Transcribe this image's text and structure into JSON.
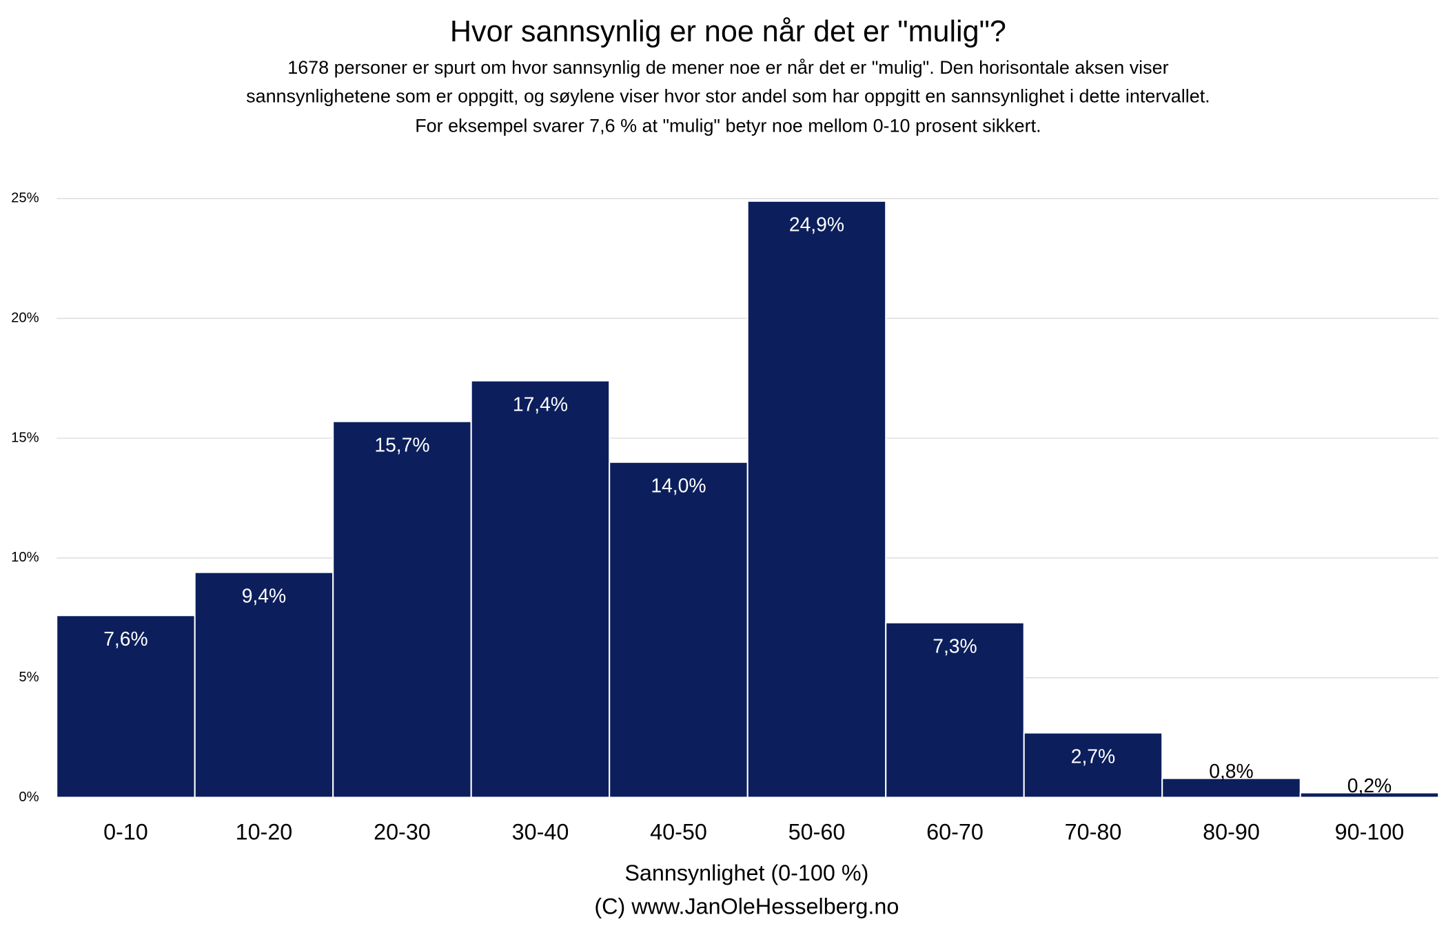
{
  "chart_data": {
    "type": "bar",
    "title": "Hvor sannsynlig er noe når det er \"mulig\"?",
    "subtitle": [
      "1678 personer er spurt om hvor sannsynlig de mener noe er når det er \"mulig\". Den horisontale aksen viser",
      "sannsynlighetene som er oppgitt, og søylene viser hvor stor andel som har oppgitt en sannsynlighet i dette intervallet.",
      "For eksempel svarer 7,6 % at \"mulig\" betyr noe mellom 0-10 prosent sikkert."
    ],
    "x_label": "Sannsynlighet (0-100 %)",
    "credit": "(C) www.JanOleHesselberg.no",
    "categories": [
      "0-10",
      "10-20",
      "20-30",
      "30-40",
      "40-50",
      "50-60",
      "60-70",
      "70-80",
      "80-90",
      "90-100"
    ],
    "values": [
      7.6,
      9.4,
      15.7,
      17.4,
      14.0,
      24.9,
      7.3,
      2.7,
      0.8,
      0.2
    ],
    "value_labels": [
      "7,6%",
      "9,4%",
      "15,7%",
      "17,4%",
      "14,0%",
      "24,9%",
      "7,3%",
      "2,7%",
      "0,8%",
      "0,2%"
    ],
    "color": "#0c1f5c",
    "ylim": [
      0,
      25
    ],
    "yticks": [
      {
        "value": 0,
        "label": "0%"
      },
      {
        "value": 5,
        "label": "5%"
      },
      {
        "value": 10,
        "label": "10%"
      },
      {
        "value": 15,
        "label": "15%"
      },
      {
        "value": 20,
        "label": "20%"
      },
      {
        "value": 25,
        "label": "25%"
      }
    ],
    "grid": true
  }
}
